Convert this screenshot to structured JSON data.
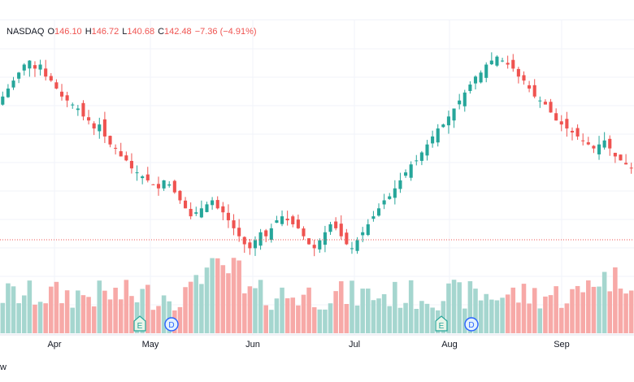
{
  "legend": {
    "symbol": "NASDAQ",
    "open_label": "O",
    "open": "146.10",
    "high_label": "H",
    "high": "146.72",
    "low_label": "L",
    "low": "140.68",
    "close_label": "C",
    "close": "142.48",
    "change": "−7.36 (−4.91%)"
  },
  "watermark_text": "w",
  "colors": {
    "up": "#26a69a",
    "down": "#ef5350",
    "up_vol": "#a5d6cf",
    "down_vol": "#f7a9a7",
    "grid": "#f0f3fa",
    "price_line": "#ef5350"
  },
  "chart_data": {
    "type": "candlestick",
    "months": [
      "Apr",
      "May",
      "Jun",
      "Jul",
      "Aug",
      "Sep"
    ],
    "markers": [
      {
        "label": "E",
        "type": "earnings",
        "month": "May"
      },
      {
        "label": "D",
        "type": "dividend",
        "month": "May"
      },
      {
        "label": "E",
        "type": "earnings",
        "month": "Aug"
      },
      {
        "label": "D",
        "type": "dividend",
        "month": "Aug"
      }
    ],
    "close_series": [
      168,
      170,
      172,
      174,
      176,
      177,
      175,
      176,
      173,
      172,
      170,
      168,
      167,
      166,
      165,
      163,
      162,
      160,
      161,
      158,
      156,
      155,
      153,
      152,
      150,
      149,
      148,
      147,
      146,
      145,
      147,
      146,
      144,
      142,
      140,
      138,
      139,
      140,
      141,
      142,
      140,
      139,
      137,
      135,
      133,
      131,
      130,
      132,
      134,
      133,
      135,
      137,
      138,
      137,
      136,
      135,
      133,
      131,
      130,
      132,
      134,
      136,
      135,
      133,
      131,
      130,
      132,
      134,
      136,
      138,
      140,
      142,
      143,
      145,
      147,
      149,
      151,
      152,
      154,
      156,
      158,
      160,
      161,
      163,
      165,
      167,
      169,
      171,
      173,
      174,
      176,
      177,
      178,
      177,
      176,
      175,
      173,
      172,
      170,
      168,
      167,
      166,
      164,
      162,
      161,
      160,
      159,
      158,
      157,
      156,
      155,
      156,
      157,
      155,
      153,
      152,
      151,
      150
    ]
  }
}
